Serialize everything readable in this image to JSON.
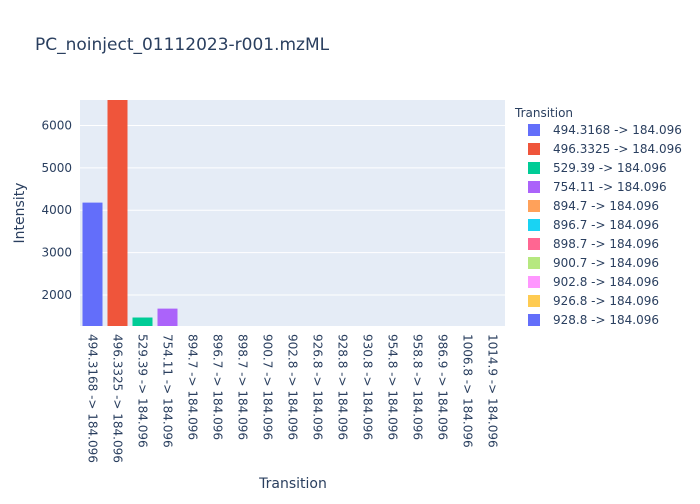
{
  "chart_data": {
    "type": "bar",
    "title": "PC_noinject_01112023-r001.mzML",
    "xlabel": "Transition",
    "ylabel": "Intensity",
    "ylim": [
      1270,
      6600
    ],
    "y_ticks": [
      2000,
      3000,
      4000,
      5000,
      6000
    ],
    "grid": true,
    "legend_title": "Transition",
    "legend_position": "right",
    "categories": [
      "494.3168 -> 184.096",
      "496.3325 -> 184.096",
      "529.39 -> 184.096",
      "754.11 -> 184.096",
      "894.7 -> 184.096",
      "896.7 -> 184.096",
      "898.7 -> 184.096",
      "900.7 -> 184.096",
      "902.8 -> 184.096",
      "926.8 -> 184.096",
      "928.8 -> 184.096",
      "930.8 -> 184.096",
      "954.8 -> 184.096",
      "958.8 -> 184.096",
      "986.9 -> 184.096",
      "1006.8 -> 184.096",
      "1014.9 -> 184.096"
    ],
    "values": [
      4180,
      6600,
      1470,
      1680,
      null,
      null,
      null,
      null,
      null,
      null,
      null,
      null,
      null,
      null,
      null,
      null,
      null
    ],
    "colors": [
      "#636efa",
      "#EF553B",
      "#00cc96",
      "#ab63fa",
      "#FFA15A",
      "#19d3f3",
      "#FF6692",
      "#B6E880",
      "#FF97FF",
      "#FECB52",
      "#636efa",
      "#EF553B",
      "#00cc96",
      "#ab63fa",
      "#FFA15A",
      "#19d3f3",
      "#FF6692"
    ],
    "legend_entries": [
      "494.3168 -> 184.096",
      "496.3325 -> 184.096",
      "529.39 -> 184.096",
      "754.11 -> 184.096",
      "894.7 -> 184.096",
      "896.7 -> 184.096",
      "898.7 -> 184.096",
      "900.7 -> 184.096",
      "902.8 -> 184.096",
      "926.8 -> 184.096",
      "928.8 -> 184.096"
    ]
  }
}
